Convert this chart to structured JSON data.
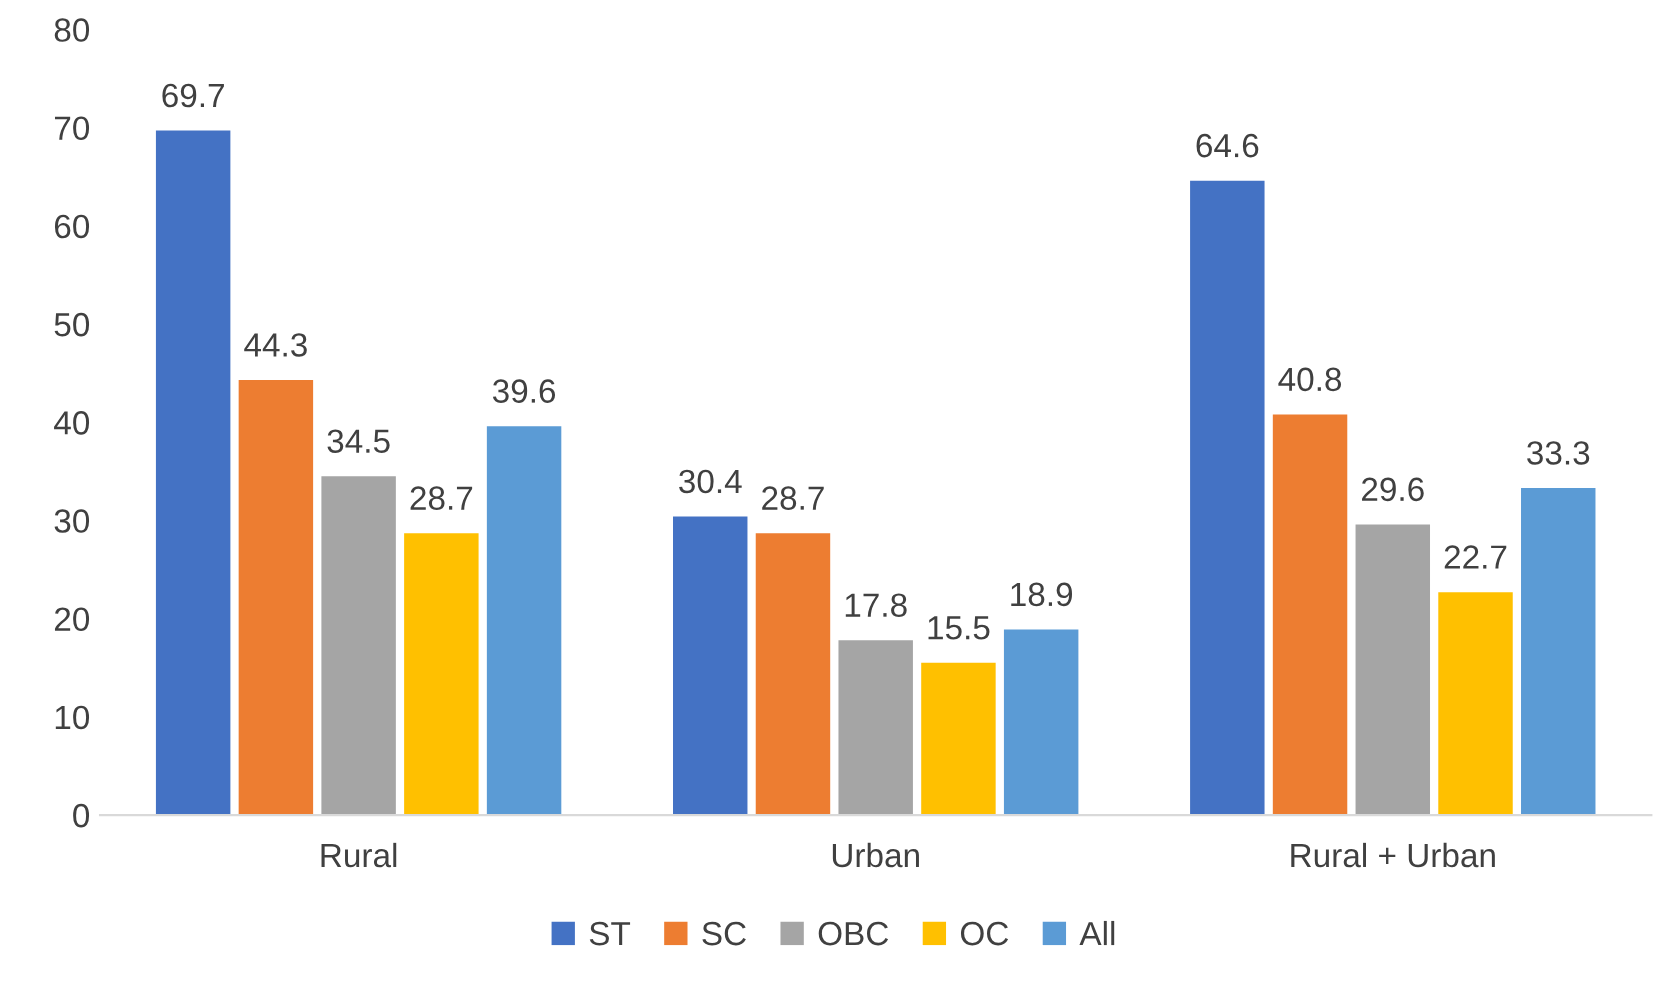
{
  "chart_data": {
    "type": "bar",
    "categories": [
      "Rural",
      "Urban",
      "Rural + Urban"
    ],
    "series": [
      {
        "name": "ST",
        "color": "#4472c4",
        "values": [
          69.7,
          30.4,
          64.6
        ]
      },
      {
        "name": "SC",
        "color": "#ed7d31",
        "values": [
          44.3,
          28.7,
          40.8
        ]
      },
      {
        "name": "OBC",
        "color": "#a5a5a5",
        "values": [
          34.5,
          17.8,
          29.6
        ]
      },
      {
        "name": "OC",
        "color": "#ffc000",
        "values": [
          28.7,
          15.5,
          22.7
        ]
      },
      {
        "name": "All",
        "color": "#5b9bd5",
        "values": [
          39.6,
          18.9,
          33.3
        ]
      }
    ],
    "ylim": [
      0,
      80
    ],
    "yticks": [
      0,
      10,
      20,
      30,
      40,
      50,
      60,
      70,
      80
    ],
    "grid": false,
    "legend": "bottom",
    "data_labels": true
  }
}
